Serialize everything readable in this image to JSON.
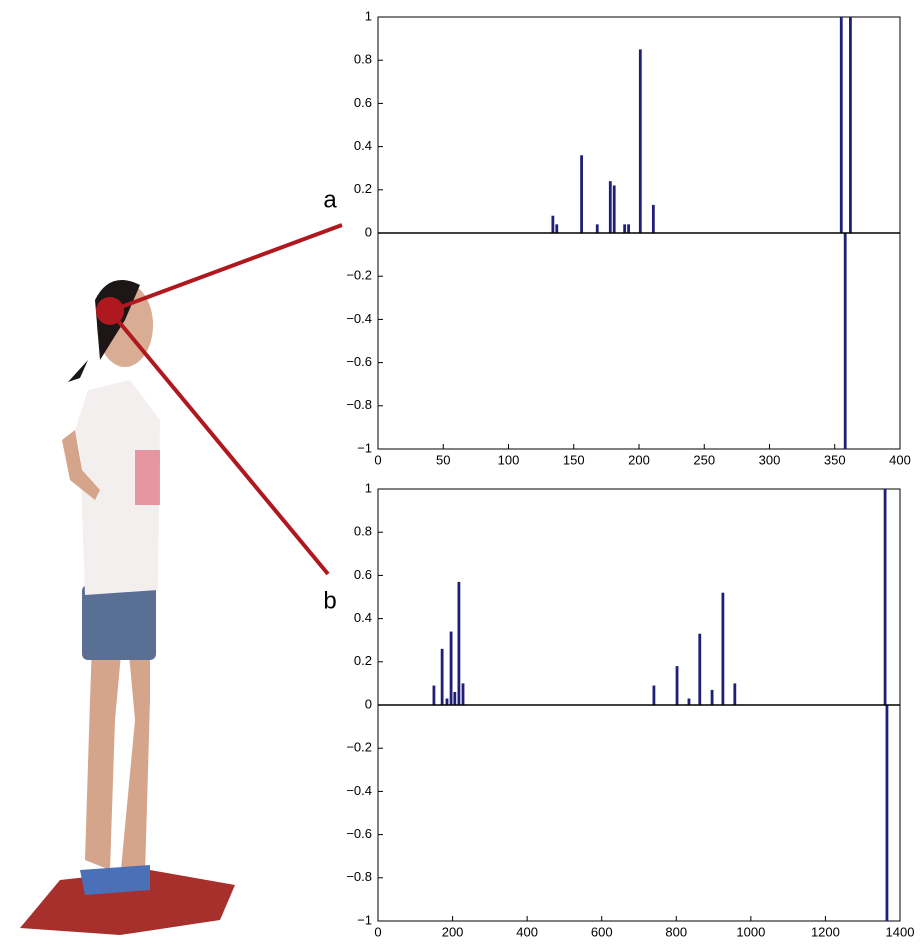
{
  "chart_data": [
    {
      "type": "bar",
      "label": "a",
      "color": "#1f1f78",
      "x": [
        134,
        137,
        156,
        168,
        178,
        181,
        189,
        192,
        201,
        211,
        355,
        358,
        362
      ],
      "values": [
        0.08,
        0.04,
        0.36,
        0.04,
        0.24,
        0.22,
        0.04,
        0.04,
        0.85,
        0.13,
        1,
        -1,
        1
      ],
      "xlim": [
        0,
        400
      ],
      "xticks": [
        0,
        50,
        100,
        150,
        200,
        250,
        300,
        350,
        400
      ],
      "ylim": [
        -1,
        1
      ],
      "yticks": [
        {
          "value": -1,
          "label": "−1"
        },
        {
          "value": -0.8,
          "label": "−0.8"
        },
        {
          "value": -0.6,
          "label": "−0.6"
        },
        {
          "value": -0.4,
          "label": "−0.4"
        },
        {
          "value": -0.2,
          "label": "−0.2"
        },
        0,
        0.2,
        0.4,
        0.6,
        0.8,
        1
      ]
    },
    {
      "type": "bar",
      "label": "b",
      "color": "#1f1f78",
      "x": [
        150,
        172,
        185,
        196,
        206,
        217,
        228,
        740,
        802,
        834,
        863,
        896,
        925,
        957,
        1360,
        1365
      ],
      "values": [
        0.09,
        0.26,
        0.03,
        0.34,
        0.06,
        0.57,
        0.1,
        0.09,
        0.18,
        0.03,
        0.33,
        0.07,
        0.52,
        0.1,
        1,
        -1
      ],
      "xlim": [
        0,
        1400
      ],
      "xticks": [
        0,
        200,
        400,
        600,
        800,
        1000,
        1200,
        1400
      ],
      "ylim": [
        -1,
        1
      ],
      "yticks": [
        {
          "value": -1,
          "label": "−1"
        },
        {
          "value": -0.8,
          "label": "−0.8"
        },
        {
          "value": -0.6,
          "label": "−0.6"
        },
        {
          "value": -0.4,
          "label": "−0.4"
        },
        {
          "value": -0.2,
          "label": "−0.2"
        },
        0,
        0.2,
        0.4,
        0.6,
        0.8,
        1
      ]
    }
  ]
}
